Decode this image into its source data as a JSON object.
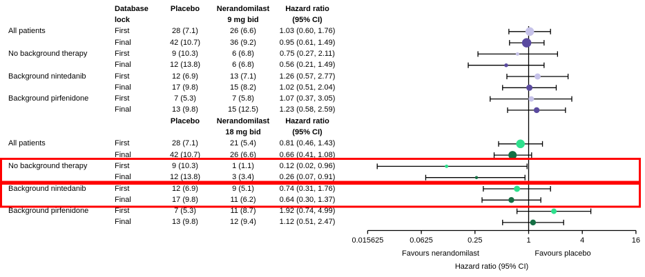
{
  "table": {
    "sections": [
      {
        "comparison": "Nerandomilast 9 mg bid vs placebo",
        "header": {
          "lock": [
            "Database",
            "lock"
          ],
          "placebo": [
            "Placebo"
          ],
          "drug": [
            "Nerandomilast",
            "9 mg bid"
          ],
          "hr": [
            "Hazard ratio",
            "(95% CI)"
          ]
        },
        "rows": [
          {
            "group": "All patients",
            "lock": "First",
            "placebo": "28 (7.1)",
            "drug": "26 (6.6)",
            "hr_text": "1.03 (0.60, 1.76)"
          },
          {
            "group": "",
            "lock": "Final",
            "placebo": "42 (10.7)",
            "drug": "36 (9.2)",
            "hr_text": "0.95 (0.61, 1.49)"
          },
          {
            "group": "No background therapy",
            "lock": "First",
            "placebo": "9 (10.3)",
            "drug": "6 (6.8)",
            "hr_text": "0.75 (0.27, 2.11)"
          },
          {
            "group": "",
            "lock": "Final",
            "placebo": "12 (13.8)",
            "drug": "6 (6.8)",
            "hr_text": "0.56 (0.21, 1.49)"
          },
          {
            "group": "Background nintedanib",
            "lock": "First",
            "placebo": "12 (6.9)",
            "drug": "13 (7.1)",
            "hr_text": "1.26 (0.57, 2.77)"
          },
          {
            "group": "",
            "lock": "Final",
            "placebo": "17 (9.8)",
            "drug": "15 (8.2)",
            "hr_text": "1.02 (0.51, 2.04)"
          },
          {
            "group": "Background pirfenidone",
            "lock": "First",
            "placebo": "7 (5.3)",
            "drug": "7 (5.8)",
            "hr_text": "1.07 (0.37, 3.05)"
          },
          {
            "group": "",
            "lock": "Final",
            "placebo": "13 (9.8)",
            "drug": "15 (12.5)",
            "hr_text": "1.23 (0.58, 2.59)"
          }
        ]
      },
      {
        "comparison": "Nerandomilast 18 mg bid vs placebo",
        "header": {
          "lock": [],
          "placebo": [
            "Placebo"
          ],
          "drug": [
            "Nerandomilast",
            "18 mg bid"
          ],
          "hr": [
            "Hazard ratio",
            "(95% CI)"
          ]
        },
        "rows": [
          {
            "group": "All patients",
            "lock": "First",
            "placebo": "28 (7.1)",
            "drug": "21 (5.4)",
            "hr_text": "0.81 (0.46, 1.43)"
          },
          {
            "group": "",
            "lock": "Final",
            "placebo": "42 (10.7)",
            "drug": "26 (6.6)",
            "hr_text": "0.66 (0.41, 1.08)"
          },
          {
            "group": "No background therapy",
            "lock": "First",
            "placebo": "9 (10.3)",
            "drug": "1 (1.1)",
            "hr_text": "0.12 (0.02, 0.96)"
          },
          {
            "group": "",
            "lock": "Final",
            "placebo": "12 (13.8)",
            "drug": "3 (3.4)",
            "hr_text": "0.26 (0.07, 0.91)"
          },
          {
            "group": "Background nintedanib",
            "lock": "First",
            "placebo": "12 (6.9)",
            "drug": "9 (5.1)",
            "hr_text": "0.74 (0.31, 1.76)"
          },
          {
            "group": "",
            "lock": "Final",
            "placebo": "17 (9.8)",
            "drug": "11 (6.2)",
            "hr_text": "0.64 (0.30, 1.37)"
          },
          {
            "group": "Background pirfenidone",
            "lock": "First",
            "placebo": "7 (5.3)",
            "drug": "11 (8.7)",
            "hr_text": "1.92 (0.74, 4.99)"
          },
          {
            "group": "",
            "lock": "Final",
            "placebo": "13 (9.8)",
            "drug": "12 (9.4)",
            "hr_text": "1.12 (0.51, 2.47)"
          }
        ]
      }
    ]
  },
  "chart_data": {
    "type": "forest",
    "xscale": "log4",
    "xlim": [
      0.015625,
      16
    ],
    "ticks": [
      "0.015625",
      "0.0625",
      "0.25",
      "1",
      "4",
      "16"
    ],
    "reference_line": 1,
    "xlabel": "Hazard ratio (95% CI)",
    "favours_left": "Favours nerandomilast",
    "favours_right": "Favours placebo",
    "grid": false,
    "series": [
      {
        "name": "Nerandomilast 9 mg bid",
        "colors": {
          "First": "#c6c2e9",
          "Final": "#5a4a9f"
        },
        "points": [
          {
            "group": "All patients",
            "lock": "First",
            "hr": 1.03,
            "lo": 0.6,
            "hi": 1.76,
            "size": 12.5
          },
          {
            "group": "All patients",
            "lock": "Final",
            "hr": 0.95,
            "lo": 0.61,
            "hi": 1.49,
            "size": 13.5
          },
          {
            "group": "No background therapy",
            "lock": "First",
            "hr": 0.75,
            "lo": 0.27,
            "hi": 2.11,
            "size": 5
          },
          {
            "group": "No background therapy",
            "lock": "Final",
            "hr": 0.56,
            "lo": 0.21,
            "hi": 1.49,
            "size": 5.5
          },
          {
            "group": "Background nintedanib",
            "lock": "First",
            "hr": 1.26,
            "lo": 0.57,
            "hi": 2.77,
            "size": 9
          },
          {
            "group": "Background nintedanib",
            "lock": "Final",
            "hr": 1.02,
            "lo": 0.51,
            "hi": 2.04,
            "size": 9
          },
          {
            "group": "Background pirfenidone",
            "lock": "First",
            "hr": 1.07,
            "lo": 0.37,
            "hi": 3.05,
            "size": 8
          },
          {
            "group": "Background pirfenidone",
            "lock": "Final",
            "hr": 1.23,
            "lo": 0.58,
            "hi": 2.59,
            "size": 8.5
          }
        ]
      },
      {
        "name": "Nerandomilast 18 mg bid",
        "colors": {
          "First": "#2ee08d",
          "Final": "#156f44"
        },
        "points": [
          {
            "group": "All patients",
            "lock": "First",
            "hr": 0.81,
            "lo": 0.46,
            "hi": 1.43,
            "size": 12.5
          },
          {
            "group": "All patients",
            "lock": "Final",
            "hr": 0.66,
            "lo": 0.41,
            "hi": 1.08,
            "size": 12
          },
          {
            "group": "No background therapy",
            "lock": "First",
            "hr": 0.12,
            "lo": 0.02,
            "hi": 0.96,
            "size": 5
          },
          {
            "group": "No background therapy",
            "lock": "Final",
            "hr": 0.26,
            "lo": 0.07,
            "hi": 0.91,
            "size": 4.5
          },
          {
            "group": "Background nintedanib",
            "lock": "First",
            "hr": 0.74,
            "lo": 0.31,
            "hi": 1.76,
            "size": 9
          },
          {
            "group": "Background nintedanib",
            "lock": "Final",
            "hr": 0.64,
            "lo": 0.3,
            "hi": 1.37,
            "size": 8.5
          },
          {
            "group": "Background pirfenidone",
            "lock": "First",
            "hr": 1.92,
            "lo": 0.74,
            "hi": 4.99,
            "size": 8
          },
          {
            "group": "Background pirfenidone",
            "lock": "Final",
            "hr": 1.12,
            "lo": 0.51,
            "hi": 2.47,
            "size": 8.5
          }
        ]
      }
    ],
    "highlights": {
      "color": "#ff0000",
      "boxes": [
        {
          "series_index": 1,
          "groups": [
            "No background therapy"
          ],
          "rows": [
            2,
            3
          ]
        },
        {
          "series_index": 1,
          "groups": [
            "Background nintedanib"
          ],
          "rows": [
            4,
            5
          ]
        }
      ]
    }
  }
}
